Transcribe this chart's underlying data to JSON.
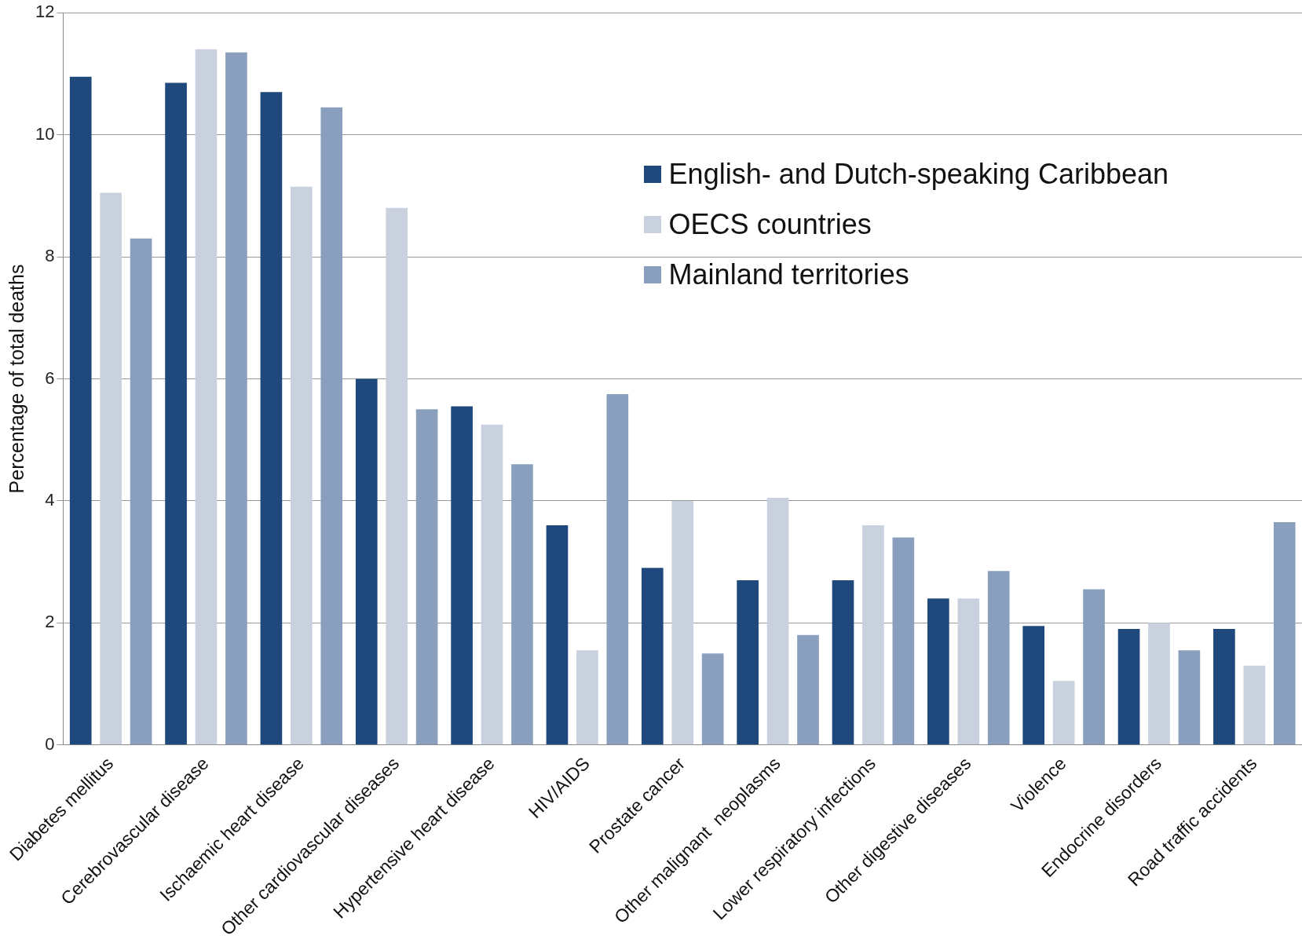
{
  "chart_data": {
    "type": "bar",
    "ylabel": "Percentage of total deaths",
    "categories": [
      "Diabetes mellitus",
      "Cerebrovascular disease",
      "Ischaemic heart disease",
      "Other cardiovascular diseases",
      "Hypertensive heart disease",
      "HIV/AIDS",
      "Prostate cancer",
      "Other malignant  neoplasms",
      "Lower respiratory infections",
      "Other digestive diseases",
      "Violence",
      "Endocrine disorders",
      "Road traffic accidents"
    ],
    "series": [
      {
        "name": "English- and Dutch-speaking Caribbean",
        "color": "#1f497d",
        "values": [
          10.95,
          10.85,
          10.7,
          6.0,
          5.55,
          3.6,
          2.9,
          2.7,
          2.7,
          2.4,
          1.95,
          1.9,
          1.9
        ]
      },
      {
        "name": "OECS countries",
        "color": "#c9d1de",
        "values": [
          9.05,
          11.4,
          9.15,
          8.8,
          5.25,
          1.55,
          4.0,
          4.05,
          3.6,
          2.4,
          1.05,
          2.0,
          1.3
        ]
      },
      {
        "name": "Mainland territories",
        "color": "#8a9fbd",
        "values": [
          8.3,
          11.35,
          10.45,
          5.5,
          4.6,
          5.75,
          1.5,
          1.8,
          3.4,
          2.85,
          2.55,
          1.55,
          3.65
        ]
      }
    ],
    "ylim": [
      0,
      12
    ],
    "yticks": [
      0,
      2,
      4,
      6,
      8,
      10,
      12
    ],
    "grid": "y",
    "legend": "top right"
  }
}
